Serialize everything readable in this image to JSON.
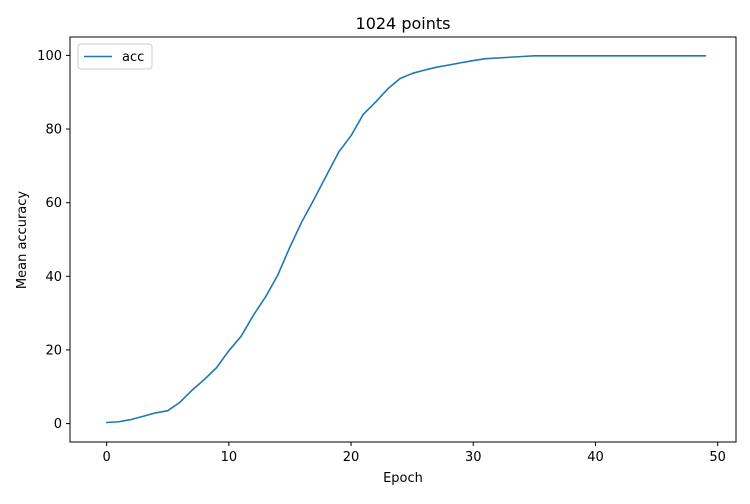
{
  "chart_data": {
    "type": "line",
    "title": "1024 points",
    "xlabel": "Epoch",
    "ylabel": "Mean accuracy",
    "xlim": [
      -3.0,
      51.5
    ],
    "ylim": [
      -5.0,
      105.0
    ],
    "xticks": [
      0,
      10,
      20,
      30,
      40,
      50
    ],
    "yticks": [
      0,
      20,
      40,
      60,
      80,
      100
    ],
    "grid": false,
    "legend": {
      "position": "top-left",
      "entries": [
        "acc"
      ]
    },
    "series": [
      {
        "name": "acc",
        "color": "#1f77b4",
        "x": [
          0,
          1,
          2,
          3,
          4,
          5,
          6,
          7,
          8,
          9,
          10,
          11,
          12,
          13,
          14,
          15,
          16,
          17,
          18,
          19,
          20,
          21,
          22,
          23,
          24,
          25,
          26,
          27,
          28,
          29,
          30,
          31,
          32,
          33,
          34,
          35,
          36,
          37,
          38,
          39,
          40,
          41,
          42,
          43,
          44,
          45,
          46,
          47,
          48,
          49
        ],
        "y": [
          0.3,
          0.5,
          1.1,
          2.0,
          2.9,
          3.5,
          5.8,
          9.1,
          12.0,
          15.2,
          19.8,
          23.7,
          29.4,
          34.4,
          40.3,
          48.0,
          55.0,
          61.1,
          67.5,
          73.8,
          78.2,
          84.0,
          87.3,
          90.9,
          93.7,
          95.1,
          96.0,
          96.8,
          97.4,
          98.0,
          98.6,
          99.1,
          99.3,
          99.5,
          99.7,
          99.9,
          99.9,
          99.9,
          99.9,
          99.9,
          99.9,
          99.9,
          99.9,
          99.9,
          99.9,
          99.9,
          99.9,
          99.9,
          99.9,
          99.9
        ]
      }
    ]
  }
}
